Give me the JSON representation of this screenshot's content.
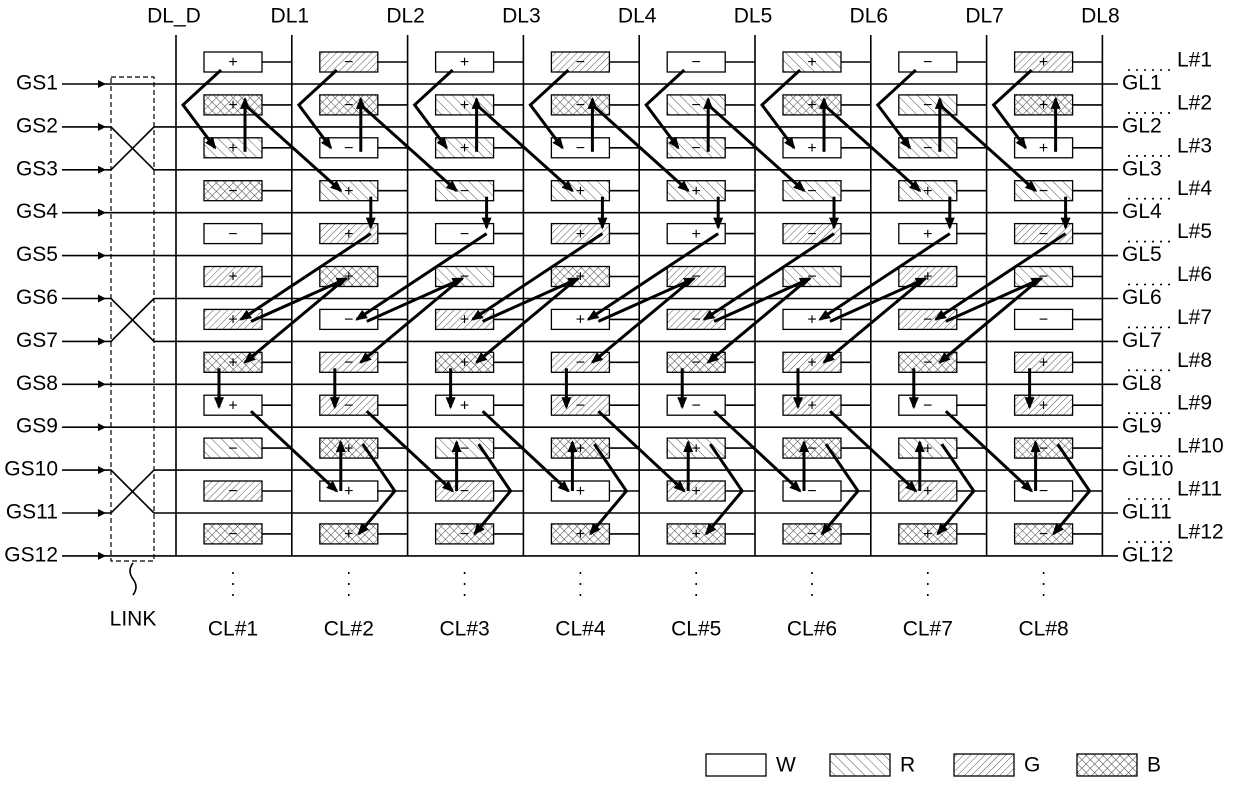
{
  "data_lines": [
    "DL_D",
    "DL1",
    "DL2",
    "DL3",
    "DL4",
    "DL5",
    "DL6",
    "DL7",
    "DL8"
  ],
  "gate_signals": [
    "GS1",
    "GS2",
    "GS3",
    "GS4",
    "GS5",
    "GS6",
    "GS7",
    "GS8",
    "GS9",
    "GS10",
    "GS11",
    "GS12"
  ],
  "gate_lines": [
    "GL1",
    "GL2",
    "GL3",
    "GL4",
    "GL5",
    "GL6",
    "GL7",
    "GL8",
    "GL9",
    "GL10",
    "GL11",
    "GL12"
  ],
  "line_labels": [
    "L#1",
    "L#2",
    "L#3",
    "L#4",
    "L#5",
    "L#6",
    "L#7",
    "L#8",
    "L#9",
    "L#10",
    "L#11",
    "L#12"
  ],
  "column_labels": [
    "CL#1",
    "CL#2",
    "CL#3",
    "CL#4",
    "CL#5",
    "CL#6",
    "CL#7",
    "CL#8"
  ],
  "link_label": "LINK",
  "legend": [
    "W",
    "R",
    "G",
    "B"
  ],
  "pixels": [
    [
      {
        "type": "W",
        "sign": "+"
      },
      {
        "type": "G",
        "sign": "−"
      },
      {
        "type": "W",
        "sign": "+"
      },
      {
        "type": "G",
        "sign": "−"
      },
      {
        "type": "W",
        "sign": "−"
      },
      {
        "type": "R",
        "sign": "+"
      },
      {
        "type": "W",
        "sign": "−"
      },
      {
        "type": "G",
        "sign": "+"
      }
    ],
    [
      {
        "type": "B",
        "sign": "+"
      },
      {
        "type": "B",
        "sign": "−"
      },
      {
        "type": "R",
        "sign": "+"
      },
      {
        "type": "B",
        "sign": "−"
      },
      {
        "type": "R",
        "sign": "−"
      },
      {
        "type": "B",
        "sign": "+"
      },
      {
        "type": "R",
        "sign": "−"
      },
      {
        "type": "B",
        "sign": "+"
      }
    ],
    [
      {
        "type": "R",
        "sign": "+"
      },
      {
        "type": "W",
        "sign": "−"
      },
      {
        "type": "R",
        "sign": "+"
      },
      {
        "type": "W",
        "sign": "−"
      },
      {
        "type": "R",
        "sign": "−"
      },
      {
        "type": "W",
        "sign": "+"
      },
      {
        "type": "R",
        "sign": "−"
      },
      {
        "type": "W",
        "sign": "+"
      }
    ],
    [
      {
        "type": "B",
        "sign": "−"
      },
      {
        "type": "R",
        "sign": "+"
      },
      {
        "type": "R",
        "sign": "−"
      },
      {
        "type": "R",
        "sign": "+"
      },
      {
        "type": "R",
        "sign": "+"
      },
      {
        "type": "R",
        "sign": "−"
      },
      {
        "type": "R",
        "sign": "+"
      },
      {
        "type": "R",
        "sign": "−"
      }
    ],
    [
      {
        "type": "W",
        "sign": "−"
      },
      {
        "type": "G",
        "sign": "+"
      },
      {
        "type": "W",
        "sign": "−"
      },
      {
        "type": "G",
        "sign": "+"
      },
      {
        "type": "W",
        "sign": "+"
      },
      {
        "type": "G",
        "sign": "−"
      },
      {
        "type": "W",
        "sign": "+"
      },
      {
        "type": "G",
        "sign": "−"
      }
    ],
    [
      {
        "type": "G",
        "sign": "+"
      },
      {
        "type": "B",
        "sign": "+"
      },
      {
        "type": "R",
        "sign": "−"
      },
      {
        "type": "B",
        "sign": "+"
      },
      {
        "type": "G",
        "sign": "−"
      },
      {
        "type": "R",
        "sign": "−"
      },
      {
        "type": "G",
        "sign": "+"
      },
      {
        "type": "R",
        "sign": "−"
      }
    ],
    [
      {
        "type": "G",
        "sign": "+"
      },
      {
        "type": "W",
        "sign": "−"
      },
      {
        "type": "G",
        "sign": "+"
      },
      {
        "type": "W",
        "sign": "+"
      },
      {
        "type": "G",
        "sign": "−"
      },
      {
        "type": "W",
        "sign": "+"
      },
      {
        "type": "G",
        "sign": "−"
      },
      {
        "type": "W",
        "sign": "−"
      }
    ],
    [
      {
        "type": "B",
        "sign": "+"
      },
      {
        "type": "G",
        "sign": "−"
      },
      {
        "type": "B",
        "sign": "+"
      },
      {
        "type": "G",
        "sign": "−"
      },
      {
        "type": "B",
        "sign": "−"
      },
      {
        "type": "G",
        "sign": "+"
      },
      {
        "type": "B",
        "sign": "−"
      },
      {
        "type": "G",
        "sign": "+"
      }
    ],
    [
      {
        "type": "W",
        "sign": "+"
      },
      {
        "type": "G",
        "sign": "−"
      },
      {
        "type": "W",
        "sign": "+"
      },
      {
        "type": "G",
        "sign": "−"
      },
      {
        "type": "W",
        "sign": "−"
      },
      {
        "type": "G",
        "sign": "+"
      },
      {
        "type": "W",
        "sign": "−"
      },
      {
        "type": "G",
        "sign": "+"
      }
    ],
    [
      {
        "type": "R",
        "sign": "−"
      },
      {
        "type": "B",
        "sign": "+"
      },
      {
        "type": "R",
        "sign": "−"
      },
      {
        "type": "B",
        "sign": "+"
      },
      {
        "type": "R",
        "sign": "+"
      },
      {
        "type": "B",
        "sign": "−"
      },
      {
        "type": "R",
        "sign": "+"
      },
      {
        "type": "B",
        "sign": "−"
      }
    ],
    [
      {
        "type": "G",
        "sign": "−"
      },
      {
        "type": "W",
        "sign": "+"
      },
      {
        "type": "G",
        "sign": "−"
      },
      {
        "type": "W",
        "sign": "+"
      },
      {
        "type": "G",
        "sign": "+"
      },
      {
        "type": "W",
        "sign": "−"
      },
      {
        "type": "G",
        "sign": "+"
      },
      {
        "type": "W",
        "sign": "−"
      }
    ],
    [
      {
        "type": "B",
        "sign": "−"
      },
      {
        "type": "B",
        "sign": "+"
      },
      {
        "type": "B",
        "sign": "−"
      },
      {
        "type": "B",
        "sign": "+"
      },
      {
        "type": "B",
        "sign": "+"
      },
      {
        "type": "B",
        "sign": "−"
      },
      {
        "type": "B",
        "sign": "+"
      },
      {
        "type": "B",
        "sign": "−"
      }
    ]
  ]
}
